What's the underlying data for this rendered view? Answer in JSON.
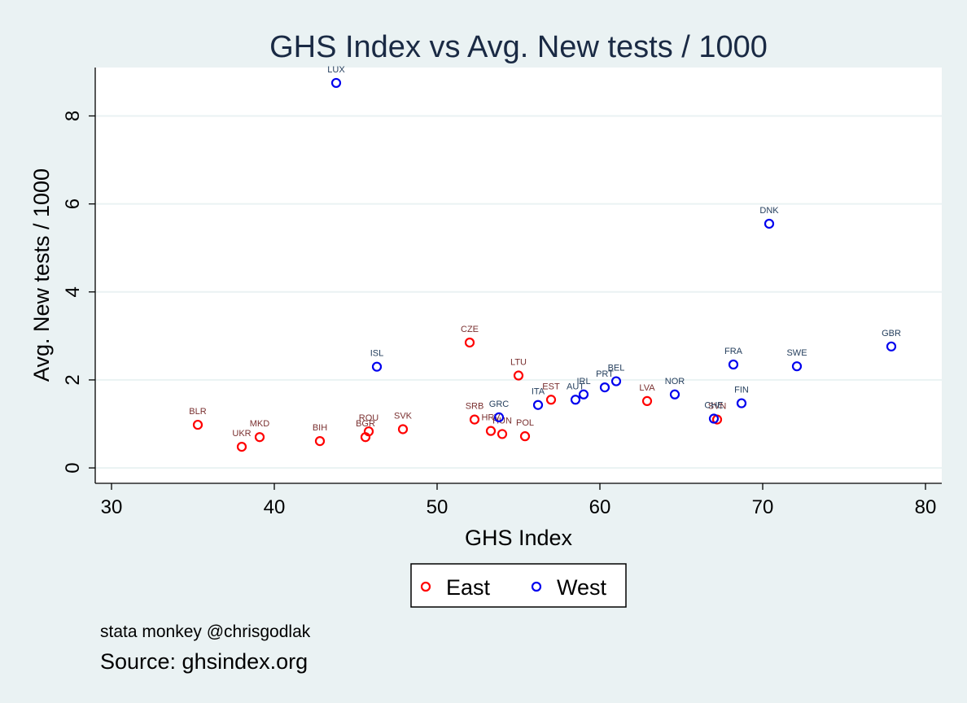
{
  "chart_data": {
    "type": "scatter",
    "title": "GHS Index vs Avg. New tests / 1000",
    "xlabel": "GHS Index",
    "ylabel": "Avg. New tests / 1000",
    "xlim": [
      29,
      81
    ],
    "ylim": [
      -0.35,
      9.1
    ],
    "xticks": [
      30,
      40,
      50,
      60,
      70,
      80
    ],
    "yticks": [
      0,
      2,
      4,
      6,
      8
    ],
    "grid": "horizontal",
    "legend_position": "bottom",
    "series": [
      {
        "name": "East",
        "color": "#ff0000",
        "label_color": "#7a3030",
        "points": [
          {
            "label": "UKR",
            "x": 38.0,
            "y": 0.48
          },
          {
            "label": "MKD",
            "x": 39.1,
            "y": 0.7
          },
          {
            "label": "BIH",
            "x": 42.8,
            "y": 0.61
          },
          {
            "label": "BGR",
            "x": 45.6,
            "y": 0.7
          },
          {
            "label": "ROU",
            "x": 45.8,
            "y": 0.83
          },
          {
            "label": "SVK",
            "x": 47.9,
            "y": 0.88
          },
          {
            "label": "CZE",
            "x": 52.0,
            "y": 2.85
          },
          {
            "label": "SRB",
            "x": 52.3,
            "y": 1.1
          },
          {
            "label": "HRV",
            "x": 53.3,
            "y": 0.84
          },
          {
            "label": "HUN",
            "x": 54.0,
            "y": 0.77
          },
          {
            "label": "POL",
            "x": 55.4,
            "y": 0.72
          },
          {
            "label": "LTU",
            "x": 55.0,
            "y": 2.1
          },
          {
            "label": "EST",
            "x": 57.0,
            "y": 1.55
          },
          {
            "label": "LVA",
            "x": 62.9,
            "y": 1.52
          },
          {
            "label": "SVN",
            "x": 67.2,
            "y": 1.1
          },
          {
            "label": "BLR",
            "x": 35.3,
            "y": 0.98
          }
        ]
      },
      {
        "name": "West",
        "color": "#0000ee",
        "label_color": "#26405e",
        "points": [
          {
            "label": "LUX",
            "x": 43.8,
            "y": 8.75
          },
          {
            "label": "ISL",
            "x": 46.3,
            "y": 2.3
          },
          {
            "label": "GRC",
            "x": 53.8,
            "y": 1.15
          },
          {
            "label": "ITA",
            "x": 56.2,
            "y": 1.43
          },
          {
            "label": "AUT",
            "x": 58.5,
            "y": 1.55
          },
          {
            "label": "IRL",
            "x": 59.0,
            "y": 1.67
          },
          {
            "label": "PRT",
            "x": 60.3,
            "y": 1.83
          },
          {
            "label": "BEL",
            "x": 61.0,
            "y": 1.97
          },
          {
            "label": "NOR",
            "x": 64.6,
            "y": 1.67
          },
          {
            "label": "CHE",
            "x": 67.0,
            "y": 1.12
          },
          {
            "label": "FRA",
            "x": 68.2,
            "y": 2.35
          },
          {
            "label": "FIN",
            "x": 68.7,
            "y": 1.47
          },
          {
            "label": "DNK",
            "x": 70.4,
            "y": 5.55
          },
          {
            "label": "SWE",
            "x": 72.1,
            "y": 2.31
          },
          {
            "label": "GBR",
            "x": 77.9,
            "y": 2.76
          }
        ]
      }
    ]
  },
  "notes": {
    "credit": "stata monkey @chrisgodlak",
    "source": "Source: ghsindex.org"
  }
}
